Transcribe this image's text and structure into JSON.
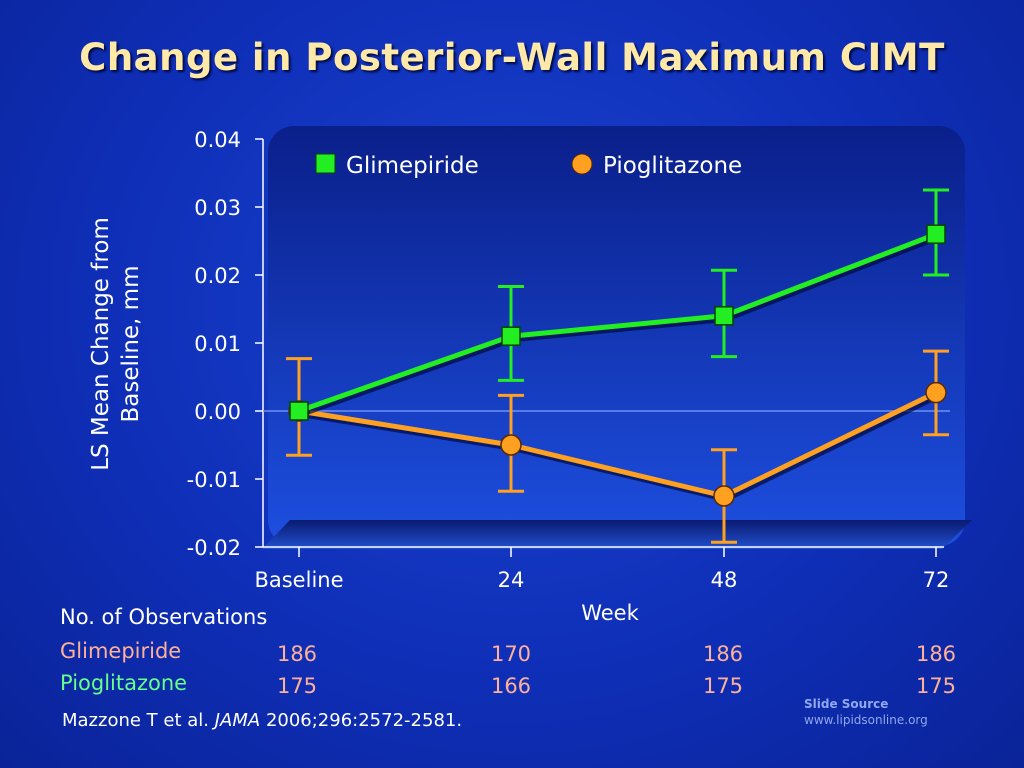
{
  "title": "Change in Posterior-Wall Maximum CIMT",
  "chart_data": {
    "type": "line",
    "ylabel_line1": "LS Mean Change from",
    "ylabel_line2": "Baseline, mm",
    "xlabel": "Week",
    "ylim": [
      -0.02,
      0.04
    ],
    "yticks": [
      "0.04",
      "0.03",
      "0.02",
      "0.01",
      "0.00",
      "-0.01",
      "-0.02"
    ],
    "categories": [
      "Baseline",
      "24",
      "48",
      "72"
    ],
    "grid": "zero line only",
    "legend_placement": "top",
    "series": [
      {
        "name": "Glimepiride",
        "marker": "square",
        "color": "#22ee22",
        "values": [
          0.0,
          0.011,
          0.014,
          0.026
        ],
        "err_low": [
          0.0,
          0.0045,
          0.008,
          0.02
        ],
        "err_high": [
          0.0,
          0.0183,
          0.0207,
          0.0325
        ]
      },
      {
        "name": "Pioglitazone",
        "marker": "circle",
        "color": "#ffa020",
        "values": [
          0.0,
          -0.005,
          -0.0125,
          0.0027
        ],
        "err_low": [
          -0.0065,
          -0.0118,
          -0.0193,
          -0.0035
        ],
        "err_high": [
          0.0077,
          0.0023,
          -0.0057,
          0.0088
        ]
      }
    ]
  },
  "observations": {
    "heading": "No. of Observations",
    "rows": [
      {
        "label": "Glimepiride",
        "values": [
          "186",
          "170",
          "186",
          "186"
        ]
      },
      {
        "label": "Pioglitazone",
        "values": [
          "175",
          "166",
          "175",
          "175"
        ]
      }
    ]
  },
  "citation": {
    "authors": "Mazzone T et al.",
    "journal": "JAMA",
    "details": "2006;296:2572-2581."
  },
  "source": {
    "title": "Slide Source",
    "url": "www.lipidsonline.org"
  },
  "colors": {
    "title": "#ffe9a8",
    "glimepiride_label": "#ffb098",
    "pioglitazone_label": "#66ff88",
    "obs_values": "#ffb098"
  }
}
